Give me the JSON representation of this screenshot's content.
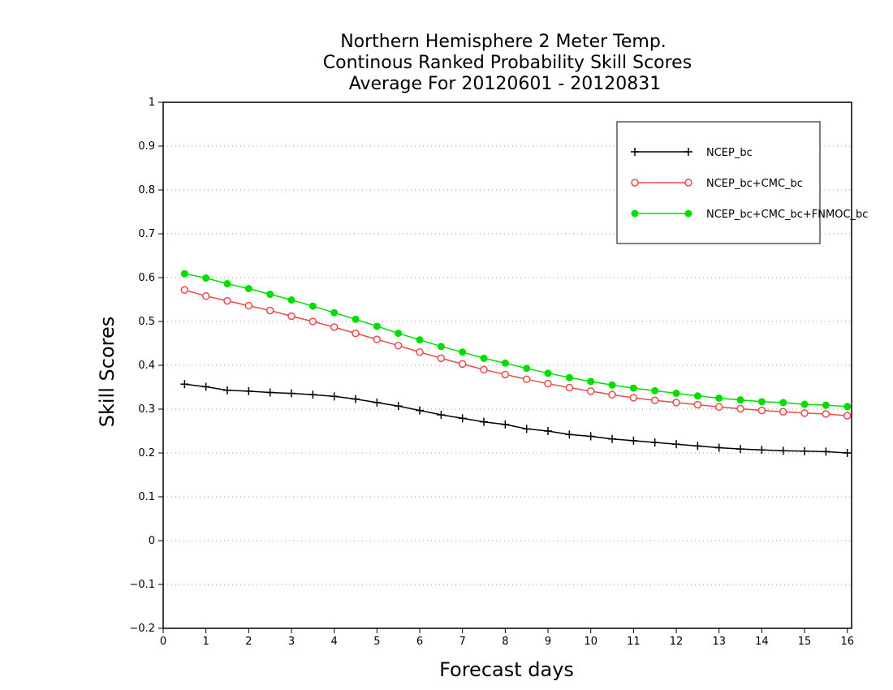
{
  "chart_data": {
    "type": "line",
    "title": [
      "Northern Hemisphere 2 Meter Temp.",
      "Continous Ranked Probability Skill Scores",
      "Average For 20120601 - 20120831"
    ],
    "xlabel": "Forecast days",
    "ylabel": "Skill Scores",
    "xlim": [
      0,
      16.1
    ],
    "ylim": [
      -0.2,
      1
    ],
    "xticks": [
      0,
      1,
      2,
      3,
      4,
      5,
      6,
      7,
      8,
      9,
      10,
      11,
      12,
      13,
      14,
      15,
      16
    ],
    "yticks": [
      -0.2,
      -0.1,
      0,
      0.1,
      0.2,
      0.3,
      0.4,
      0.5,
      0.6,
      0.7,
      0.8,
      0.9,
      1
    ],
    "ytick_labels": [
      "−0.2",
      "−0.1",
      "0",
      "0.1",
      "0.2",
      "0.3",
      "0.4",
      "0.5",
      "0.6",
      "0.7",
      "0.8",
      "0.9",
      "1"
    ],
    "grid": "horizontal dotted",
    "legend_position": "top-right",
    "x": [
      0.5,
      1,
      1.5,
      2,
      2.5,
      3,
      3.5,
      4,
      4.5,
      5,
      5.5,
      6,
      6.5,
      7,
      7.5,
      8,
      8.5,
      9,
      9.5,
      10,
      10.5,
      11,
      11.5,
      12,
      12.5,
      13,
      13.5,
      14,
      14.5,
      15,
      15.5,
      16
    ],
    "series": [
      {
        "name": "NCEP_bc",
        "color": "#000000",
        "marker": "plus",
        "values": [
          0.357,
          0.351,
          0.343,
          0.341,
          0.338,
          0.336,
          0.333,
          0.329,
          0.323,
          0.315,
          0.307,
          0.297,
          0.287,
          0.279,
          0.271,
          0.265,
          0.255,
          0.25,
          0.242,
          0.238,
          0.232,
          0.228,
          0.224,
          0.22,
          0.216,
          0.212,
          0.209,
          0.207,
          0.205,
          0.204,
          0.203,
          0.2
        ]
      },
      {
        "name": "NCEP_bc+CMC_bc",
        "color": "#e84a4a",
        "marker": "open-circle",
        "values": [
          0.572,
          0.558,
          0.547,
          0.536,
          0.525,
          0.512,
          0.5,
          0.487,
          0.473,
          0.459,
          0.445,
          0.43,
          0.416,
          0.403,
          0.39,
          0.379,
          0.368,
          0.358,
          0.349,
          0.341,
          0.333,
          0.326,
          0.32,
          0.315,
          0.31,
          0.305,
          0.301,
          0.297,
          0.294,
          0.291,
          0.289,
          0.285
        ]
      },
      {
        "name": "NCEP_bc+CMC_bc+FNMOC_bc",
        "color": "#00dd00",
        "marker": "filled-circle",
        "values": [
          0.609,
          0.599,
          0.586,
          0.575,
          0.562,
          0.549,
          0.535,
          0.52,
          0.505,
          0.489,
          0.473,
          0.458,
          0.443,
          0.43,
          0.416,
          0.405,
          0.393,
          0.382,
          0.372,
          0.363,
          0.355,
          0.348,
          0.342,
          0.336,
          0.33,
          0.325,
          0.321,
          0.317,
          0.315,
          0.311,
          0.309,
          0.306
        ]
      }
    ]
  }
}
